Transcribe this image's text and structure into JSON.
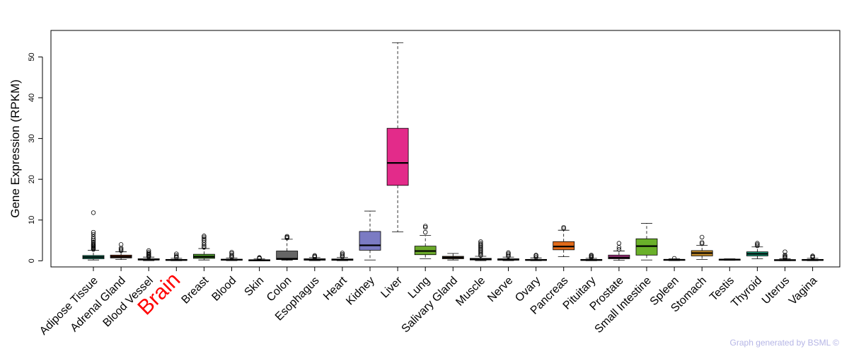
{
  "chart_data": {
    "type": "boxplot",
    "ylabel": "Gene Expression (RPKM)",
    "ylim": [
      -1.5,
      56.5
    ],
    "yticks": [
      0,
      10,
      20,
      30,
      40,
      50
    ],
    "highlight": {
      "label": "Brain",
      "color": "#ff0000"
    },
    "series": [
      {
        "name": "Adipose Tissue",
        "color": "#1a8f6f",
        "min": 0.2,
        "q1": 0.5,
        "median": 0.9,
        "q3": 1.3,
        "max": 2.6,
        "outliers": [
          2.8,
          3.0,
          3.2,
          3.4,
          3.6,
          3.8,
          4.0,
          4.3,
          4.6,
          5.0,
          5.4,
          5.9,
          6.5,
          7.0,
          11.8
        ]
      },
      {
        "name": "Adrenal Gland",
        "color": "#8b3a1a",
        "min": 0.3,
        "q1": 0.7,
        "median": 1.0,
        "q3": 1.4,
        "max": 2.2,
        "outliers": [
          2.5,
          2.8,
          3.1,
          4.0
        ]
      },
      {
        "name": "Blood Vessel",
        "color": "#7b5a9a",
        "min": 0.05,
        "q1": 0.2,
        "median": 0.3,
        "q3": 0.5,
        "max": 0.9,
        "outliers": [
          1.0,
          1.2,
          1.4,
          1.6,
          1.8,
          2.1,
          2.5
        ]
      },
      {
        "name": "Brain",
        "color": "#4a4a8a",
        "min": 0.02,
        "q1": 0.1,
        "median": 0.2,
        "q3": 0.35,
        "max": 0.6,
        "outliers": [
          0.8,
          1.0,
          1.3,
          1.7
        ]
      },
      {
        "name": "Breast",
        "color": "#4c9a2a",
        "min": 0.2,
        "q1": 0.6,
        "median": 1.0,
        "q3": 1.6,
        "max": 3.0,
        "outliers": [
          3.3,
          3.6,
          4.0,
          4.5,
          5.0,
          5.4,
          5.8,
          6.1
        ]
      },
      {
        "name": "Blood",
        "color": "#3a3a3a",
        "min": 0.05,
        "q1": 0.15,
        "median": 0.25,
        "q3": 0.4,
        "max": 0.7,
        "outliers": [
          0.9,
          1.1,
          1.4,
          1.8,
          2.1
        ]
      },
      {
        "name": "Skin",
        "color": "#7a3a7a",
        "min": 0.02,
        "q1": 0.08,
        "median": 0.15,
        "q3": 0.25,
        "max": 0.45,
        "outliers": [
          0.55,
          0.7,
          0.8
        ]
      },
      {
        "name": "Colon",
        "color": "#666666",
        "min": 0.1,
        "q1": 0.3,
        "median": 0.5,
        "q3": 2.4,
        "max": 5.3,
        "outliers": [
          5.6,
          5.8,
          6.0
        ]
      },
      {
        "name": "Esophagus",
        "color": "#4a7a9a",
        "min": 0.05,
        "q1": 0.15,
        "median": 0.3,
        "q3": 0.5,
        "max": 0.8,
        "outliers": [
          0.9,
          1.1,
          1.3
        ]
      },
      {
        "name": "Heart",
        "color": "#3a6a8a",
        "min": 0.05,
        "q1": 0.12,
        "median": 0.25,
        "q3": 0.45,
        "max": 0.8,
        "outliers": [
          1.0,
          1.3,
          1.6,
          1.9
        ]
      },
      {
        "name": "Kidney",
        "color": "#7b7bc3",
        "min": 0.2,
        "q1": 2.6,
        "median": 3.8,
        "q3": 7.2,
        "max": 12.2,
        "outliers": []
      },
      {
        "name": "Liver",
        "color": "#e32b8a",
        "min": 7.1,
        "q1": 18.5,
        "median": 24.0,
        "q3": 32.5,
        "max": 53.5,
        "outliers": []
      },
      {
        "name": "Lung",
        "color": "#6aa82a",
        "min": 0.5,
        "q1": 1.5,
        "median": 2.4,
        "q3": 3.6,
        "max": 6.2,
        "outliers": [
          7.0,
          8.2,
          8.5
        ]
      },
      {
        "name": "Salivary Gland",
        "color": "#9a6a2a",
        "min": 0.2,
        "q1": 0.5,
        "median": 0.8,
        "q3": 1.1,
        "max": 1.8,
        "outliers": []
      },
      {
        "name": "Muscle",
        "color": "#5a5a5a",
        "min": 0.05,
        "q1": 0.2,
        "median": 0.4,
        "q3": 0.6,
        "max": 1.1,
        "outliers": [
          1.3,
          1.6,
          1.9,
          2.2,
          2.5,
          2.8,
          3.1,
          3.4,
          3.7,
          4.0,
          4.3,
          4.7
        ]
      },
      {
        "name": "Nerve",
        "color": "#4a4a7a",
        "min": 0.05,
        "q1": 0.15,
        "median": 0.3,
        "q3": 0.5,
        "max": 0.9,
        "outliers": [
          1.1,
          1.4,
          1.7,
          2.0
        ]
      },
      {
        "name": "Ovary",
        "color": "#5a3a6a",
        "min": 0.02,
        "q1": 0.1,
        "median": 0.2,
        "q3": 0.35,
        "max": 0.7,
        "outliers": [
          0.9,
          1.2,
          1.4
        ]
      },
      {
        "name": "Pancreas",
        "color": "#e06a1a",
        "min": 1.0,
        "q1": 2.7,
        "median": 3.5,
        "q3": 4.7,
        "max": 7.5,
        "outliers": [
          7.9,
          8.2
        ]
      },
      {
        "name": "Pituitary",
        "color": "#4a4a6a",
        "min": 0.02,
        "q1": 0.1,
        "median": 0.2,
        "q3": 0.35,
        "max": 0.6,
        "outliers": [
          0.8,
          1.0,
          1.2,
          1.4
        ]
      },
      {
        "name": "Prostate",
        "color": "#b03a8a",
        "min": 0.1,
        "q1": 0.5,
        "median": 0.8,
        "q3": 1.4,
        "max": 2.4,
        "outliers": [
          2.8,
          3.3,
          4.3
        ]
      },
      {
        "name": "Small Intestine",
        "color": "#6ab02a",
        "min": 0.2,
        "q1": 1.4,
        "median": 3.6,
        "q3": 5.4,
        "max": 9.2,
        "outliers": []
      },
      {
        "name": "Spleen",
        "color": "#5a5a5a",
        "min": 0.05,
        "q1": 0.15,
        "median": 0.25,
        "q3": 0.35,
        "max": 0.5,
        "outliers": [
          0.6
        ]
      },
      {
        "name": "Stomach",
        "color": "#c08a2a",
        "min": 0.3,
        "q1": 1.2,
        "median": 1.9,
        "q3": 2.5,
        "max": 3.8,
        "outliers": [
          4.2,
          4.5,
          5.8
        ]
      },
      {
        "name": "Testis",
        "color": "#7a7a7a",
        "min": 0.1,
        "q1": 0.2,
        "median": 0.3,
        "q3": 0.4,
        "max": 0.5,
        "outliers": []
      },
      {
        "name": "Thyroid",
        "color": "#1a9a7a",
        "min": 0.5,
        "q1": 1.2,
        "median": 1.7,
        "q3": 2.2,
        "max": 3.4,
        "outliers": [
          3.7,
          4.0,
          4.3
        ]
      },
      {
        "name": "Uterus",
        "color": "#3a5a7a",
        "min": 0.02,
        "q1": 0.08,
        "median": 0.15,
        "q3": 0.3,
        "max": 0.5,
        "outliers": [
          0.7,
          0.9,
          1.1,
          1.4,
          2.2
        ]
      },
      {
        "name": "Vagina",
        "color": "#4a4a4a",
        "min": 0.02,
        "q1": 0.1,
        "median": 0.2,
        "q3": 0.35,
        "max": 0.6,
        "outliers": [
          0.8,
          1.0,
          1.2
        ]
      }
    ]
  },
  "credit": "Graph generated by BSML ©"
}
